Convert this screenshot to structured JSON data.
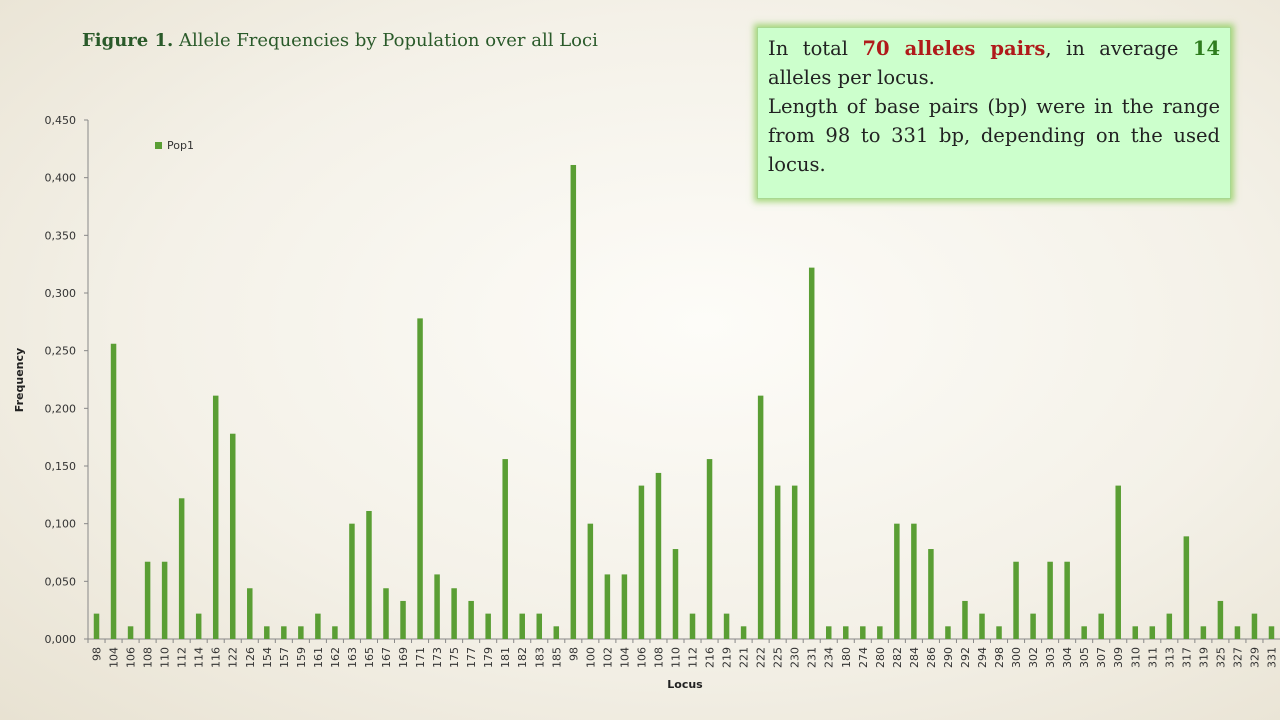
{
  "figure": {
    "title_lead": "Figure 1.",
    "title_rest": " Allele Frequencies by Population over  all Loci"
  },
  "info_box": {
    "p1_a": "In total ",
    "p1_b": "70 alleles pairs",
    "p1_c": ", in average ",
    "p1_d": "14",
    "p1_e": " alleles per locus.",
    "p2": "Length of base pairs (bp) were in the range from 98 to 331 bp, depending on the used locus.",
    "color_red": "#b01a1a",
    "color_green": "#2e7d1e"
  },
  "chart_data": {
    "type": "bar",
    "xlabel": "Locus",
    "ylabel": "Frequency",
    "ylim": [
      0,
      0.45
    ],
    "yticks": [
      "0,000",
      "0,050",
      "0,100",
      "0,150",
      "0,200",
      "0,250",
      "0,300",
      "0,350",
      "0,400",
      "0,450"
    ],
    "grid": false,
    "legend_position": "top-left",
    "series_color": "#5a9e34",
    "categories": [
      "98",
      "104",
      "106",
      "108",
      "110",
      "112",
      "114",
      "116",
      "122",
      "126",
      "154",
      "157",
      "159",
      "161",
      "162",
      "163",
      "165",
      "167",
      "169",
      "171",
      "173",
      "175",
      "177",
      "179",
      "181",
      "182",
      "183",
      "185",
      "98",
      "100",
      "102",
      "104",
      "106",
      "108",
      "110",
      "112",
      "216",
      "219",
      "221",
      "222",
      "225",
      "230",
      "231",
      "234",
      "180",
      "274",
      "280",
      "282",
      "284",
      "286",
      "290",
      "292",
      "294",
      "298",
      "300",
      "302",
      "303",
      "304",
      "305",
      "307",
      "309",
      "310",
      "311",
      "313",
      "317",
      "319",
      "325",
      "327",
      "329",
      "331"
    ],
    "series": [
      {
        "name": "Pop1",
        "values": [
          0.022,
          0.256,
          0.011,
          0.067,
          0.067,
          0.122,
          0.022,
          0.211,
          0.178,
          0.044,
          0.011,
          0.011,
          0.011,
          0.022,
          0.011,
          0.1,
          0.111,
          0.044,
          0.033,
          0.278,
          0.056,
          0.044,
          0.033,
          0.022,
          0.156,
          0.022,
          0.022,
          0.011,
          0.411,
          0.1,
          0.056,
          0.056,
          0.133,
          0.144,
          0.078,
          0.022,
          0.156,
          0.022,
          0.011,
          0.211,
          0.133,
          0.133,
          0.322,
          0.011,
          0.011,
          0.011,
          0.011,
          0.1,
          0.1,
          0.078,
          0.011,
          0.033,
          0.022,
          0.011,
          0.067,
          0.022,
          0.067,
          0.067,
          0.011,
          0.022,
          0.133,
          0.011,
          0.011,
          0.022,
          0.089,
          0.011,
          0.033,
          0.011,
          0.022,
          0.011
        ]
      }
    ]
  }
}
